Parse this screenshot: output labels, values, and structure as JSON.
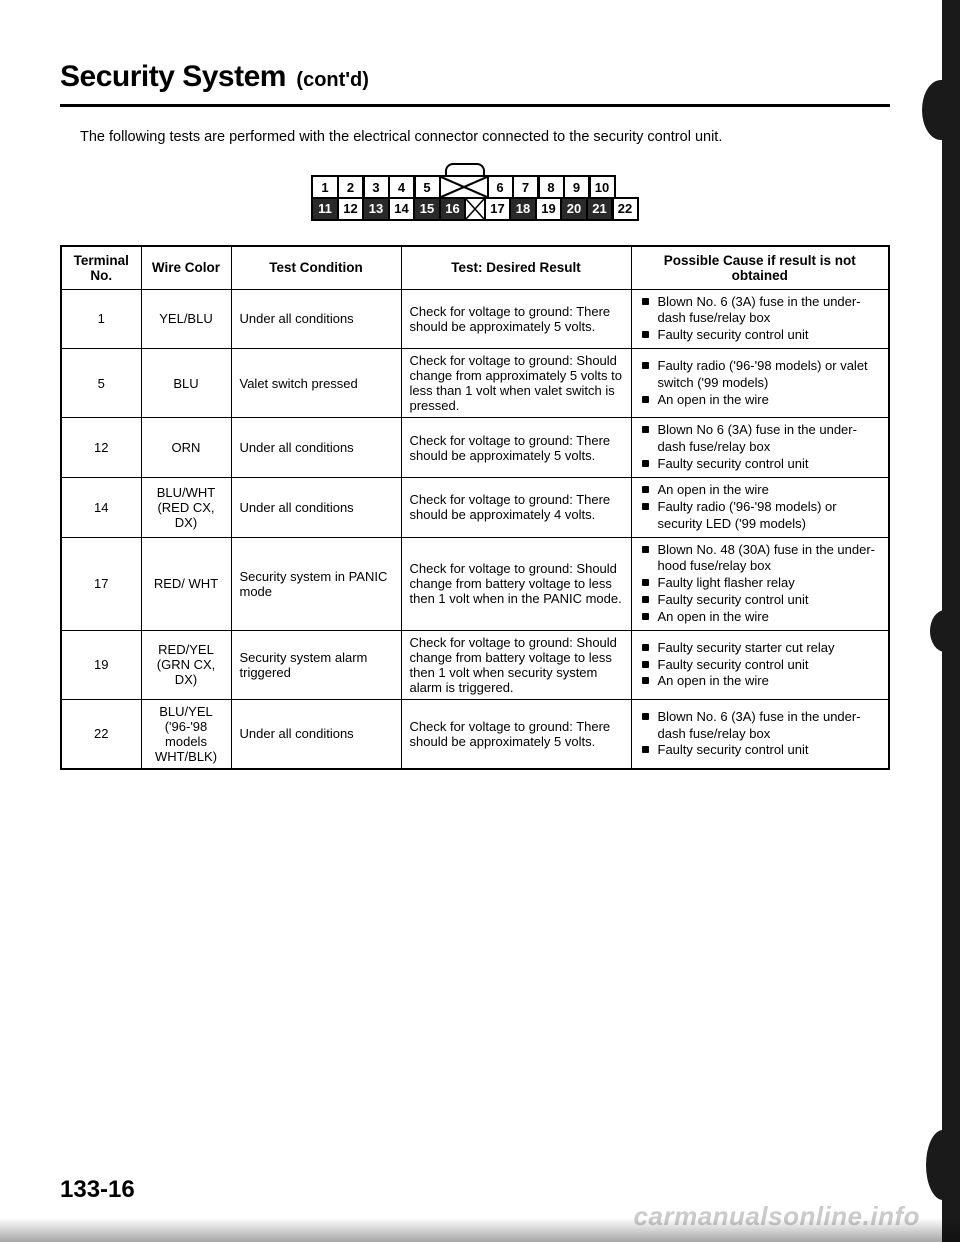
{
  "title": {
    "main": "Security System",
    "sub": "(cont'd)"
  },
  "intro": "The following tests are performed with the electrical connector connected to the security control unit.",
  "connector": {
    "row1": [
      {
        "n": "1",
        "dark": false
      },
      {
        "n": "2",
        "dark": false
      },
      {
        "n": "3",
        "dark": false
      },
      {
        "n": "4",
        "dark": false
      },
      {
        "n": "5",
        "dark": false
      },
      {
        "gap": true
      },
      {
        "n": "6",
        "dark": false
      },
      {
        "n": "7",
        "dark": false
      },
      {
        "n": "8",
        "dark": false
      },
      {
        "n": "9",
        "dark": false
      },
      {
        "n": "10",
        "dark": false
      }
    ],
    "row2": [
      {
        "n": "11",
        "dark": true
      },
      {
        "n": "12",
        "dark": false
      },
      {
        "n": "13",
        "dark": true
      },
      {
        "n": "14",
        "dark": false
      },
      {
        "n": "15",
        "dark": true
      },
      {
        "n": "16",
        "dark": true
      },
      {
        "gap": true,
        "small": true
      },
      {
        "n": "17",
        "dark": false
      },
      {
        "n": "18",
        "dark": true
      },
      {
        "n": "19",
        "dark": false
      },
      {
        "n": "20",
        "dark": true
      },
      {
        "n": "21",
        "dark": true
      },
      {
        "n": "22",
        "dark": false
      }
    ]
  },
  "table": {
    "headers": {
      "terminal": "Terminal No.",
      "wire": "Wire Color",
      "condition": "Test Condition",
      "result": "Test: Desired Result",
      "cause": "Possible Cause if result is not obtained"
    },
    "rows": [
      {
        "terminal": "1",
        "wire": "YEL/BLU",
        "condition": "Under all conditions",
        "result": "Check for voltage to ground: There should be approximately 5 volts.",
        "causes": [
          "Blown No. 6 (3A) fuse in the under-dash fuse/relay box",
          "Faulty security control unit"
        ]
      },
      {
        "terminal": "5",
        "wire": "BLU",
        "condition": "Valet switch pressed",
        "result": "Check for voltage to ground: Should change from approximately 5 volts to less than 1 volt when valet switch is pressed.",
        "causes": [
          "Faulty radio ('96-'98 models) or valet switch ('99 models)",
          "An open in the wire"
        ]
      },
      {
        "terminal": "12",
        "wire": "ORN",
        "condition": "Under all conditions",
        "result": "Check for voltage to ground: There should be approximately 5 volts.",
        "causes": [
          "Blown No 6 (3A) fuse in the under-dash fuse/relay box",
          "Faulty security control unit"
        ]
      },
      {
        "terminal": "14",
        "wire": "BLU/WHT (RED CX, DX)",
        "condition": "Under all conditions",
        "result": "Check for voltage to ground: There should be approximately 4 volts.",
        "causes": [
          "An open in the wire",
          "Faulty radio ('96-'98 models) or security LED ('99 models)"
        ]
      },
      {
        "terminal": "17",
        "wire": "RED/ WHT",
        "condition": "Security system in PANIC mode",
        "result": "Check for voltage to ground: Should change from battery voltage to less then 1 volt when in the PANIC mode.",
        "causes": [
          "Blown No. 48 (30A) fuse in the under-hood fuse/relay box",
          "Faulty light flasher relay",
          "Faulty security control unit",
          "An open in the wire"
        ]
      },
      {
        "terminal": "19",
        "wire": "RED/YEL (GRN CX, DX)",
        "condition": "Security system alarm triggered",
        "result": "Check for voltage to ground: Should change from battery voltage to less then 1 volt when security system alarm is triggered.",
        "causes": [
          "Faulty security starter cut relay",
          "Faulty security control unit",
          "An open in the wire"
        ]
      },
      {
        "terminal": "22",
        "wire": "BLU/YEL ('96-'98 models WHT/BLK)",
        "condition": "Under all conditions",
        "result": "Check for voltage to ground: There should be approximately 5 volts.",
        "causes": [
          "Blown No. 6 (3A) fuse in the under-dash fuse/relay box",
          "Faulty security control unit"
        ]
      }
    ]
  },
  "page_number": "133-16",
  "watermark": "carmanualsonline.info"
}
